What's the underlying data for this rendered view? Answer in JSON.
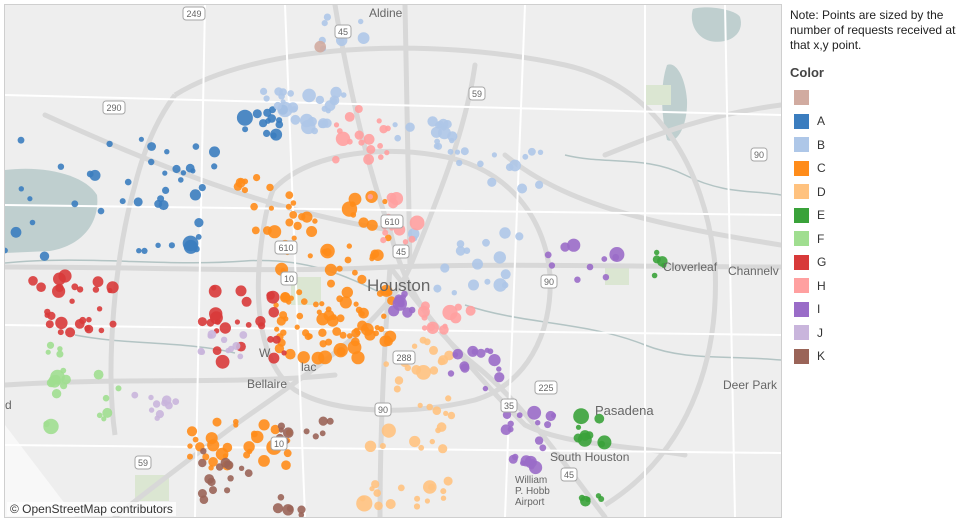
{
  "map": {
    "attribution": "© OpenStreetMap contributors",
    "labels": {
      "houston": "Houston",
      "bellaire": "Bellaire",
      "west": "W",
      "pl": "lac",
      "pasadena": "Pasadena",
      "south_houston": "South Houston",
      "deer_park": "Deer Park",
      "cloverleaf": "Cloverleaf",
      "channelview": "Channelv",
      "aldine": "Aldine",
      "airport": "William\nP. Hobb\nAirport",
      "left_d": "d"
    },
    "shields": {
      "i45_north": "45",
      "us59_north": "59",
      "us290": "290",
      "i10_west": "10",
      "i45_mid": "45",
      "loop610_w": "610",
      "us90_east": "90",
      "us90_center": "90",
      "tx288": "288",
      "tx35": "35",
      "us59_sw": "59",
      "i10_sw": "10",
      "i45_south": "45",
      "tx225": "225",
      "us90_ne": "90",
      "i10_center": "10",
      "loop610_n": "610",
      "hwy249": "249"
    },
    "colors": {
      "land": "#eeeeee",
      "water": "#bfcfcf",
      "park": "#dbe6d2",
      "road": "#ffffff",
      "highway": "#d8d8d8",
      "stream": "#b3c4c4"
    }
  },
  "sidebar": {
    "note": "Note: Points are sized by the number of requests received at that x,y point.",
    "legend_title": "Color",
    "legend": [
      {
        "key": "null",
        "label": "",
        "color": "#d1aba0"
      },
      {
        "key": "A",
        "label": "A",
        "color": "#3b7dbf"
      },
      {
        "key": "B",
        "label": "B",
        "color": "#aec7e8"
      },
      {
        "key": "C",
        "label": "C",
        "color": "#ff8c1a"
      },
      {
        "key": "D",
        "label": "D",
        "color": "#ffc27f"
      },
      {
        "key": "E",
        "label": "E",
        "color": "#3aa23a"
      },
      {
        "key": "F",
        "label": "F",
        "color": "#a0de90"
      },
      {
        "key": "G",
        "label": "G",
        "color": "#d83a3a"
      },
      {
        "key": "H",
        "label": "H",
        "color": "#ffa0a0"
      },
      {
        "key": "I",
        "label": "I",
        "color": "#9a6cc8"
      },
      {
        "key": "J",
        "label": "J",
        "color": "#c9b5dc"
      },
      {
        "key": "K",
        "label": "K",
        "color": "#9a6458"
      }
    ]
  }
}
